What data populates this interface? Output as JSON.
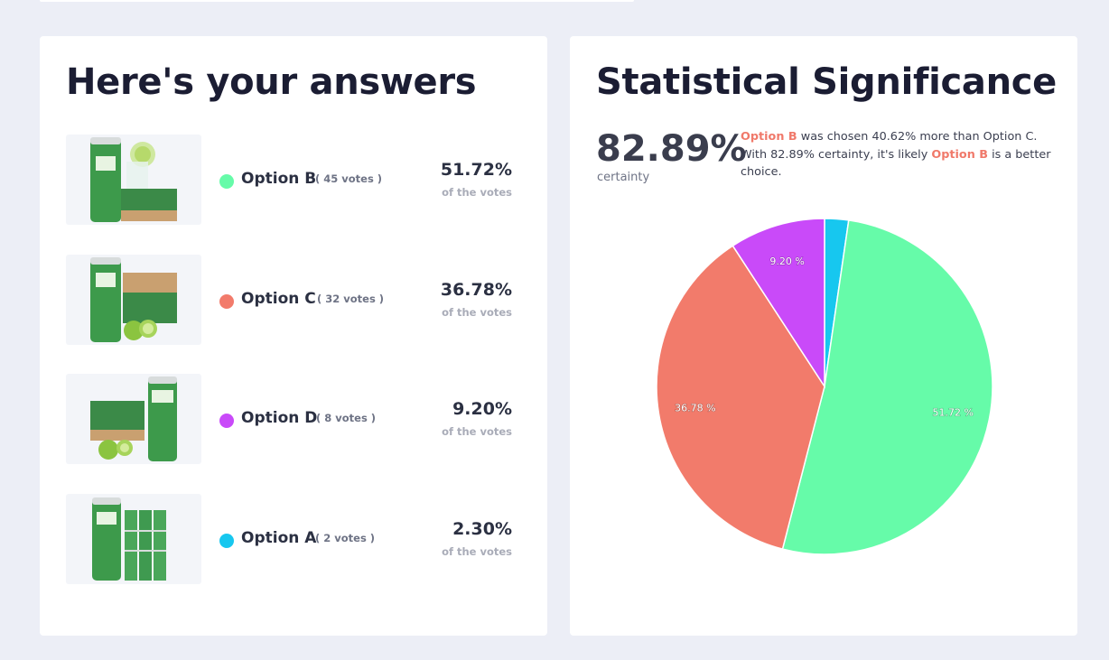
{
  "answers_card": {
    "title": "Here's your answers",
    "of_the_votes": "of the votes",
    "options": [
      {
        "label": "Option B",
        "votes": "( 45 votes )",
        "percent": "51.72%",
        "color": "#66fba9"
      },
      {
        "label": "Option C",
        "votes": "( 32 votes )",
        "percent": "36.78%",
        "color": "#f27b6b"
      },
      {
        "label": "Option D",
        "votes": "( 8 votes )",
        "percent": "9.20%",
        "color": "#c94af9"
      },
      {
        "label": "Option A",
        "votes": "( 2 votes )",
        "percent": "2.30%",
        "color": "#17c7ef"
      }
    ]
  },
  "stats_card": {
    "title": "Statistical Significance",
    "certainty_value": "82.89%",
    "certainty_label": "certainty",
    "explanation": {
      "winner": "Option B",
      "part1": " was chosen 40.62% more than Option C. With 82.89% certainty, it's likely ",
      "winner_again": "Option B",
      "part2": " is a better choice."
    }
  },
  "chart_data": {
    "type": "pie",
    "slices": [
      {
        "name": "Option A",
        "value": 2.3,
        "label": "",
        "color": "#17c7ef"
      },
      {
        "name": "Option B",
        "value": 51.72,
        "label": "51.72 %",
        "color": "#66fba9"
      },
      {
        "name": "Option C",
        "value": 36.78,
        "label": "36.78 %",
        "color": "#f27b6b"
      },
      {
        "name": "Option D",
        "value": 9.2,
        "label": "9.20 %",
        "color": "#c94af9"
      }
    ]
  }
}
